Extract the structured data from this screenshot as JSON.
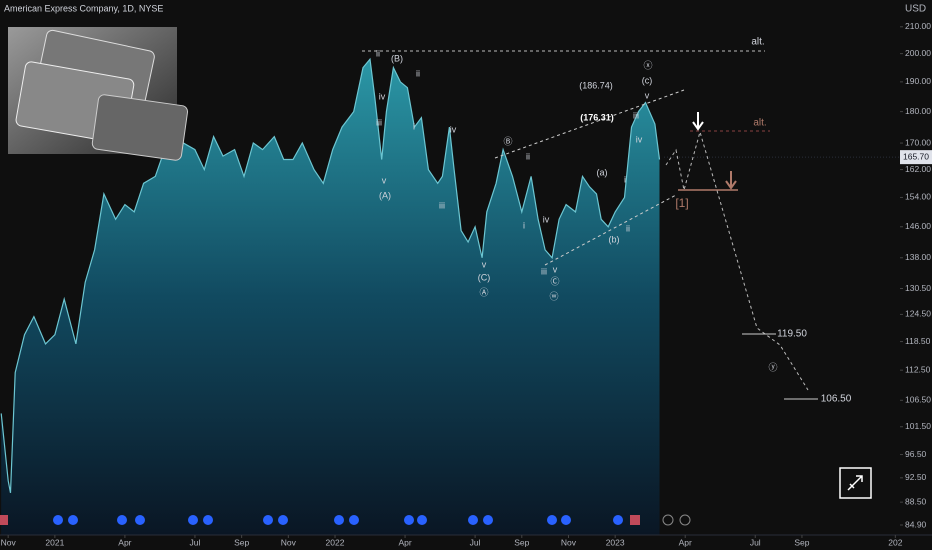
{
  "chart_data": {
    "type": "area",
    "title": "American Express Company, 1D, NYSE",
    "currency": "USD",
    "color": "#6cc6d2",
    "log_scale": true,
    "grid": false,
    "x": [
      -0.3,
      0,
      0.1,
      0.3,
      0.7,
      1.1,
      1.6,
      2.0,
      2.4,
      2.9,
      3.3,
      3.7,
      4.1,
      4.6,
      5.0,
      5.4,
      5.8,
      6.3,
      6.7,
      7.1,
      7.5,
      8.0,
      8.4,
      8.8,
      9.2,
      9.7,
      10.1,
      10.5,
      10.9,
      11.4,
      11.8,
      12.2,
      12.6,
      13.1,
      13.5,
      13.9,
      14.3,
      14.8,
      15.2,
      15.5,
      15.7,
      16.0,
      16.2,
      16.5,
      16.8,
      17.1,
      17.4,
      17.7,
      18.0,
      18.4,
      18.6,
      18.9,
      19.1,
      19.4,
      19.7,
      20.0,
      20.3,
      20.5,
      20.9,
      21.2,
      21.6,
      22.0,
      22.4,
      22.7,
      23.0,
      23.3,
      23.6,
      23.9,
      24.3,
      24.6,
      24.9,
      25.2,
      25.4,
      25.7,
      26.0,
      26.4,
      26.7,
      27.0,
      27.3,
      27.7,
      27.9
    ],
    "values": [
      104,
      92,
      90,
      112,
      120,
      124,
      118,
      120,
      128,
      118,
      132,
      140,
      155,
      148,
      152,
      150,
      158,
      160,
      168,
      165,
      170,
      168,
      162,
      172,
      166,
      168,
      160,
      170,
      168,
      172,
      165,
      165,
      170,
      162,
      158,
      168,
      175,
      180,
      195,
      198,
      185,
      165,
      180,
      195,
      190,
      188,
      175,
      178,
      162,
      158,
      160,
      175,
      162,
      145,
      142,
      146,
      138,
      150,
      158,
      168,
      160,
      150,
      160,
      148,
      140,
      138,
      148,
      152,
      150,
      160,
      157,
      155,
      148,
      146,
      150,
      154,
      175,
      180,
      183,
      176,
      165
    ],
    "xlim": [
      -0.35,
      38.2
    ],
    "xticks": [
      {
        "value": 0,
        "label": "Nov"
      },
      {
        "value": 2,
        "label": "2021"
      },
      {
        "value": 5,
        "label": "Apr"
      },
      {
        "value": 8,
        "label": "Jul"
      },
      {
        "value": 10,
        "label": "Sep"
      },
      {
        "value": 12,
        "label": "Nov"
      },
      {
        "value": 14,
        "label": "2022"
      },
      {
        "value": 17,
        "label": "Apr"
      },
      {
        "value": 20,
        "label": "Jul"
      },
      {
        "value": 22,
        "label": "Sep"
      },
      {
        "value": 24,
        "label": "Nov"
      },
      {
        "value": 26,
        "label": "2023"
      },
      {
        "value": 29,
        "label": "Apr"
      },
      {
        "value": 32,
        "label": "Jul"
      },
      {
        "value": 34,
        "label": "Sep"
      },
      {
        "value": 38,
        "label": "202"
      }
    ],
    "ylim": [
      84.9,
      210
    ],
    "yticks": [
      {
        "value": 84.9,
        "label": "84.90"
      },
      {
        "value": 88.5,
        "label": "88.50"
      },
      {
        "value": 92.5,
        "label": "92.50"
      },
      {
        "value": 96.5,
        "label": "96.50"
      },
      {
        "value": 101.5,
        "label": "101.50"
      },
      {
        "value": 106.5,
        "label": "106.50"
      },
      {
        "value": 112.5,
        "label": "112.50"
      },
      {
        "value": 118.5,
        "label": "118.50"
      },
      {
        "value": 124.5,
        "label": "124.50"
      },
      {
        "value": 130.5,
        "label": "130.50"
      },
      {
        "value": 138,
        "label": "138.00"
      },
      {
        "value": 146,
        "label": "146.00"
      },
      {
        "value": 154,
        "label": "154.00"
      },
      {
        "value": 162,
        "label": "162.00"
      },
      {
        "value": 170,
        "label": "170.00"
      },
      {
        "value": 180,
        "label": "180.00"
      },
      {
        "value": 190,
        "label": "190.00"
      },
      {
        "value": 200,
        "label": "200.00"
      },
      {
        "value": 210,
        "label": "210.00"
      }
    ],
    "last_price": {
      "value": 165.7,
      "label": "165.70"
    },
    "annotations": [
      "ii",
      "(B)",
      "ii",
      "iv",
      "iii",
      "i",
      "v",
      "(A)",
      "iv",
      "iii",
      "ii",
      "i",
      "Ⓑ",
      "iv",
      "v",
      "iii",
      "(C)",
      "v",
      "Ⓐ",
      "Ⓒ",
      "ⓦ",
      "(a)",
      "i",
      "ii",
      "(b)",
      "iii",
      "iv",
      "v",
      "(c)",
      "ⓧ",
      "(186.74)",
      "(176.31)",
      "alt.",
      "alt.",
      "[1]",
      "119.50",
      "ⓨ",
      "106.50"
    ]
  }
}
